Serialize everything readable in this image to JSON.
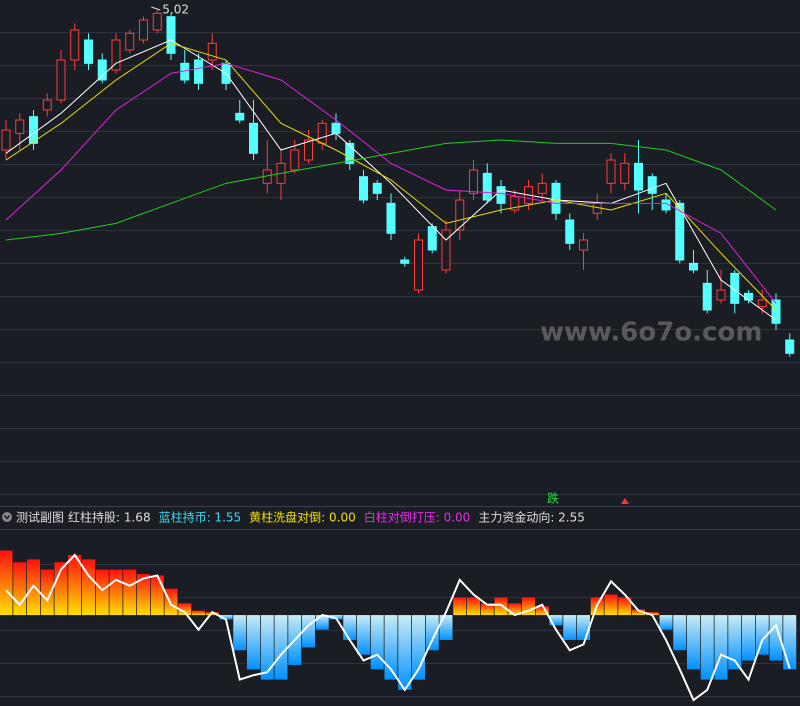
{
  "chart_data": [
    {
      "type": "candlestick",
      "ylim": [
        3.55,
        5.05
      ],
      "up_color": "#ff3b3b",
      "down_color": "#54ffff",
      "open": [
        4.6,
        4.65,
        4.7,
        4.72,
        4.75,
        4.87,
        4.93,
        4.87,
        4.84,
        4.9,
        4.93,
        4.96,
        5.0,
        4.86,
        4.87,
        4.87,
        4.86,
        4.71,
        4.68,
        4.5,
        4.5,
        4.54,
        4.57,
        4.62,
        4.68,
        4.62,
        4.52,
        4.5,
        4.44,
        4.27,
        4.18,
        4.37,
        4.24,
        4.36,
        4.47,
        4.53,
        4.49,
        4.42,
        4.44,
        4.47,
        4.5,
        4.39,
        4.3,
        4.41,
        4.5,
        4.5,
        4.56,
        4.52,
        4.45,
        4.44,
        4.26,
        4.2,
        4.15,
        4.23,
        4.17,
        4.13,
        4.15,
        4.03
      ],
      "high": [
        4.69,
        4.71,
        4.72,
        4.77,
        4.9,
        4.98,
        4.95,
        4.89,
        4.95,
        4.96,
        5.0,
        5.02,
        5.01,
        4.9,
        4.89,
        4.95,
        4.87,
        4.75,
        4.75,
        4.63,
        4.6,
        4.63,
        4.66,
        4.69,
        4.71,
        4.63,
        4.54,
        4.51,
        4.47,
        4.28,
        4.35,
        4.38,
        4.39,
        4.48,
        4.57,
        4.56,
        4.51,
        4.48,
        4.51,
        4.53,
        4.51,
        4.41,
        4.35,
        4.47,
        4.59,
        4.59,
        4.63,
        4.53,
        4.47,
        4.45,
        4.3,
        4.24,
        4.24,
        4.24,
        4.18,
        4.18,
        4.17,
        4.05
      ],
      "low": [
        4.57,
        4.6,
        4.6,
        4.7,
        4.74,
        4.84,
        4.84,
        4.8,
        4.83,
        4.89,
        4.92,
        4.95,
        4.87,
        4.8,
        4.78,
        4.84,
        4.78,
        4.68,
        4.57,
        4.47,
        4.45,
        4.53,
        4.56,
        4.6,
        4.63,
        4.54,
        4.44,
        4.45,
        4.33,
        4.25,
        4.17,
        4.29,
        4.23,
        4.33,
        4.45,
        4.44,
        4.41,
        4.41,
        4.42,
        4.45,
        4.39,
        4.3,
        4.24,
        4.39,
        4.47,
        4.48,
        4.41,
        4.42,
        4.41,
        4.26,
        4.23,
        4.11,
        4.14,
        4.11,
        4.14,
        4.11,
        4.06,
        3.98
      ],
      "close": [
        4.66,
        4.69,
        4.62,
        4.75,
        4.87,
        4.96,
        4.86,
        4.81,
        4.93,
        4.95,
        4.99,
        5.01,
        4.89,
        4.81,
        4.8,
        4.92,
        4.8,
        4.69,
        4.59,
        4.54,
        4.56,
        4.6,
        4.63,
        4.68,
        4.65,
        4.56,
        4.45,
        4.47,
        4.35,
        4.26,
        4.33,
        4.3,
        4.36,
        4.45,
        4.54,
        4.45,
        4.44,
        4.46,
        4.49,
        4.5,
        4.41,
        4.32,
        4.33,
        4.44,
        4.57,
        4.56,
        4.48,
        4.47,
        4.42,
        4.27,
        4.24,
        4.12,
        4.18,
        4.14,
        4.15,
        4.15,
        4.08,
        3.99
      ],
      "ma_x": [
        0,
        4,
        8,
        12,
        16,
        20,
        24,
        28,
        32,
        36,
        40,
        44,
        48,
        52,
        56
      ],
      "series": [
        {
          "color": "#ffffff",
          "values": [
            4.59,
            4.71,
            4.86,
            4.93,
            4.83,
            4.6,
            4.65,
            4.5,
            4.33,
            4.48,
            4.45,
            4.44,
            4.5,
            4.21,
            4.09
          ]
        },
        {
          "color": "#e8e000",
          "values": [
            4.57,
            4.68,
            4.81,
            4.92,
            4.87,
            4.68,
            4.6,
            4.51,
            4.38,
            4.42,
            4.45,
            4.42,
            4.47,
            4.29,
            4.12
          ]
        },
        {
          "color": "#e020e0",
          "values": [
            4.39,
            4.54,
            4.72,
            4.83,
            4.86,
            4.81,
            4.69,
            4.56,
            4.48,
            4.47,
            4.44,
            4.44,
            4.44,
            4.35,
            4.14
          ]
        },
        {
          "color": "#22cc22",
          "values": [
            4.33,
            4.35,
            4.38,
            4.44,
            4.5,
            4.53,
            4.56,
            4.59,
            4.62,
            4.63,
            4.62,
            4.62,
            4.6,
            4.54,
            4.42
          ]
        }
      ],
      "signal": "跌",
      "watermark": "www.6o7o.com"
    },
    {
      "type": "indicator",
      "title": "测试副图",
      "legend": [
        {
          "label": "红柱持股: 1.68",
          "color": "#dddddd"
        },
        {
          "label": "蓝柱持币: 1.55",
          "color": "#3ad8f0"
        },
        {
          "label": "黄柱洗盘对倒: 0.00",
          "color": "#f0e000"
        },
        {
          "label": "白柱对倒打压: 0.00",
          "color": "#e030e0"
        },
        {
          "label": "主力资金动向: 2.55",
          "color": "#dddddd"
        }
      ],
      "ylim": [
        0,
        12
      ],
      "bar_base": 6.2,
      "up_colors": [
        "#ff1010",
        "#ffe000"
      ],
      "down_colors": [
        "#c8ecf4",
        "#0090ff"
      ],
      "line_color": "#ffffff",
      "bars": [
        10.6,
        9.8,
        10.0,
        9.3,
        9.8,
        10.3,
        10.0,
        9.3,
        9.3,
        9.3,
        9.0,
        8.9,
        8.0,
        7.0,
        6.5,
        6.4,
        5.9,
        3.8,
        2.5,
        1.8,
        1.8,
        2.8,
        4.0,
        5.2,
        5.9,
        4.5,
        3.5,
        2.5,
        1.8,
        1.1,
        1.8,
        3.8,
        4.5,
        7.4,
        7.4,
        7.0,
        7.4,
        7.0,
        7.4,
        6.8,
        5.5,
        4.5,
        4.5,
        7.4,
        7.6,
        7.4,
        6.6,
        6.4,
        5.2,
        3.8,
        2.5,
        1.8,
        1.8,
        2.5,
        3.1,
        3.5,
        3.1,
        2.5
      ],
      "line": [
        7.9,
        6.9,
        8.2,
        7.2,
        9.3,
        10.3,
        8.9,
        7.9,
        8.6,
        8.2,
        8.7,
        8.9,
        6.9,
        6.4,
        5.2,
        6.4,
        5.9,
        1.8,
        2.1,
        2.3,
        3.5,
        4.5,
        5.5,
        6.2,
        6.0,
        4.5,
        3.1,
        3.5,
        2.5,
        1.1,
        2.5,
        4.5,
        6.4,
        8.6,
        7.6,
        6.9,
        6.9,
        6.2,
        6.5,
        6.9,
        5.2,
        3.8,
        4.2,
        6.9,
        8.5,
        7.6,
        6.5,
        6.2,
        4.5,
        2.5,
        0.4,
        1.1,
        3.5,
        3.1,
        1.8,
        4.5,
        5.5,
        2.55
      ]
    }
  ]
}
